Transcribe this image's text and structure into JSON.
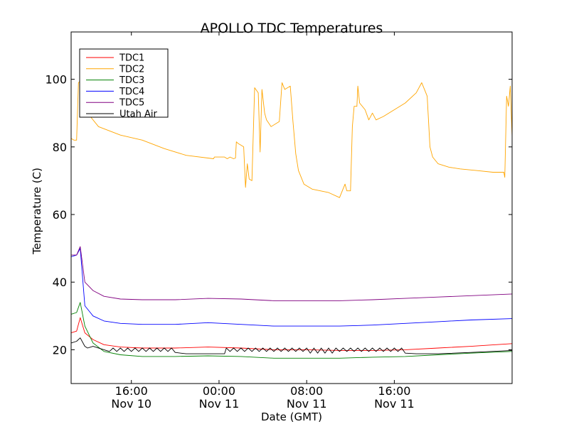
{
  "chart_data": {
    "type": "line",
    "title": "APOLLO TDC Temperatures",
    "xlabel": "Date (GMT)",
    "ylabel": "Temperature (C)",
    "xlim": [
      "Nov 10 10:30",
      "Nov 12 02:45"
    ],
    "ylim": [
      10,
      114
    ],
    "grid": false,
    "legend": "top-left",
    "x_ticks": [
      {
        "at": "Nov 10 16:00",
        "line1": "16:00",
        "line2": "Nov 10"
      },
      {
        "at": "Nov 11 00:00",
        "line1": "00:00",
        "line2": "Nov 11"
      },
      {
        "at": "Nov 11 08:00",
        "line1": "08:00",
        "line2": "Nov 11"
      },
      {
        "at": "Nov 11 16:00",
        "line1": "16:00",
        "line2": "Nov 11"
      }
    ],
    "y_ticks": [
      20,
      40,
      60,
      80,
      100
    ],
    "series": [
      {
        "name": "TDC1",
        "color": "#ff0000",
        "x": [
          "Nov 10 10:30",
          "Nov 10 11:00",
          "Nov 10 11:20",
          "Nov 10 11:45",
          "Nov 10 12:30",
          "Nov 10 13:30",
          "Nov 10 15:00",
          "Nov 10 17:00",
          "Nov 10 20:00",
          "Nov 10 23:00",
          "Nov 11 02:00",
          "Nov 11 05:00",
          "Nov 11 08:00",
          "Nov 11 11:00",
          "Nov 11 14:00",
          "Nov 11 17:00",
          "Nov 11 20:00",
          "Nov 11 23:00",
          "Nov 12 02:45"
        ],
        "values": [
          25.0,
          25.5,
          29.5,
          25.0,
          23.0,
          21.5,
          20.8,
          20.5,
          20.5,
          20.8,
          20.5,
          20.0,
          20.0,
          19.8,
          19.8,
          20.0,
          20.5,
          21.0,
          21.8
        ]
      },
      {
        "name": "TDC2",
        "color": "#ffa500",
        "x": [
          "Nov 10 10:30",
          "Nov 10 10:45",
          "Nov 10 11:00",
          "Nov 10 11:10",
          "Nov 10 11:30",
          "Nov 10 12:00",
          "Nov 10 13:00",
          "Nov 10 15:00",
          "Nov 10 17:00",
          "Nov 10 19:00",
          "Nov 10 21:00",
          "Nov 10 23:30",
          "Nov 10 23:35",
          "Nov 11 00:30",
          "Nov 11 00:45",
          "Nov 11 01:00",
          "Nov 11 01:20",
          "Nov 11 01:30",
          "Nov 11 01:35",
          "Nov 11 01:45",
          "Nov 11 02:00",
          "Nov 11 02:15",
          "Nov 11 02:25",
          "Nov 11 02:35",
          "Nov 11 02:45",
          "Nov 11 03:00",
          "Nov 11 03:15",
          "Nov 11 03:35",
          "Nov 11 03:45",
          "Nov 11 03:55",
          "Nov 11 04:10",
          "Nov 11 04:20",
          "Nov 11 04:45",
          "Nov 11 05:30",
          "Nov 11 05:45",
          "Nov 11 06:00",
          "Nov 11 06:30",
          "Nov 11 06:45",
          "Nov 11 07:00",
          "Nov 11 07:15",
          "Nov 11 07:45",
          "Nov 11 08:30",
          "Nov 11 10:00",
          "Nov 11 11:00",
          "Nov 11 11:30",
          "Nov 11 11:40",
          "Nov 11 12:00",
          "Nov 11 12:10",
          "Nov 11 12:20",
          "Nov 11 12:35",
          "Nov 11 12:40",
          "Nov 11 12:50",
          "Nov 11 13:20",
          "Nov 11 13:40",
          "Nov 11 14:00",
          "Nov 11 14:20",
          "Nov 11 15:00",
          "Nov 11 16:00",
          "Nov 11 17:00",
          "Nov 11 18:00",
          "Nov 11 18:30",
          "Nov 11 18:45",
          "Nov 11 19:00",
          "Nov 11 19:15",
          "Nov 11 19:30",
          "Nov 11 20:00",
          "Nov 11 21:00",
          "Nov 11 22:00",
          "Nov 11 23:30",
          "Nov 12 01:00",
          "Nov 12 02:00",
          "Nov 12 02:05",
          "Nov 12 02:15",
          "Nov 12 02:25",
          "Nov 12 02:35",
          "Nov 12 02:45"
        ],
        "values": [
          82.5,
          82.0,
          82.0,
          99.0,
          100.0,
          90.0,
          86.0,
          83.5,
          82.0,
          79.5,
          77.5,
          76.5,
          77.0,
          77.0,
          76.5,
          77.0,
          76.5,
          76.7,
          81.5,
          81.0,
          80.5,
          80.0,
          68.0,
          75.0,
          70.5,
          70.0,
          97.5,
          96.0,
          78.5,
          97.0,
          90.0,
          88.0,
          86.0,
          87.5,
          99.0,
          97.0,
          98.0,
          87.5,
          78.0,
          73.0,
          69.0,
          67.5,
          66.5,
          65.0,
          69.0,
          67.0,
          67.0,
          86.0,
          92.0,
          92.0,
          98.0,
          93.0,
          91.0,
          88.0,
          90.0,
          88.0,
          89.0,
          91.0,
          93.0,
          96.0,
          99.0,
          97.0,
          95.0,
          80.0,
          77.0,
          75.0,
          74.0,
          73.5,
          73.0,
          72.5,
          72.5,
          71.0,
          95.0,
          92.0,
          98.0,
          83.0
        ]
      },
      {
        "name": "TDC3",
        "color": "#008000",
        "x": [
          "Nov 10 10:30",
          "Nov 10 11:00",
          "Nov 10 11:20",
          "Nov 10 11:45",
          "Nov 10 12:30",
          "Nov 10 13:30",
          "Nov 10 15:00",
          "Nov 10 17:00",
          "Nov 10 20:00",
          "Nov 10 23:00",
          "Nov 11 02:00",
          "Nov 11 05:00",
          "Nov 11 08:00",
          "Nov 11 11:00",
          "Nov 11 14:00",
          "Nov 11 17:00",
          "Nov 11 20:00",
          "Nov 11 23:00",
          "Nov 12 02:45"
        ],
        "values": [
          30.5,
          31.0,
          34.0,
          27.0,
          22.0,
          19.5,
          18.5,
          18.0,
          18.0,
          18.2,
          18.0,
          17.5,
          17.5,
          17.5,
          17.8,
          18.0,
          18.5,
          19.0,
          19.5
        ]
      },
      {
        "name": "TDC4",
        "color": "#0000ff",
        "x": [
          "Nov 10 10:30",
          "Nov 10 11:00",
          "Nov 10 11:20",
          "Nov 10 11:45",
          "Nov 10 12:30",
          "Nov 10 13:30",
          "Nov 10 15:00",
          "Nov 10 17:00",
          "Nov 10 20:00",
          "Nov 10 23:00",
          "Nov 11 02:00",
          "Nov 11 05:00",
          "Nov 11 08:00",
          "Nov 11 11:00",
          "Nov 11 14:00",
          "Nov 11 17:00",
          "Nov 11 20:00",
          "Nov 11 23:00",
          "Nov 12 02:45"
        ],
        "values": [
          47.5,
          48.0,
          50.0,
          33.0,
          30.0,
          28.5,
          27.8,
          27.5,
          27.5,
          28.0,
          27.5,
          27.0,
          27.0,
          27.0,
          27.3,
          27.8,
          28.3,
          28.8,
          29.2
        ]
      },
      {
        "name": "TDC5",
        "color": "#800080",
        "x": [
          "Nov 10 10:30",
          "Nov 10 11:00",
          "Nov 10 11:20",
          "Nov 10 11:45",
          "Nov 10 12:30",
          "Nov 10 13:30",
          "Nov 10 15:00",
          "Nov 10 17:00",
          "Nov 10 20:00",
          "Nov 10 23:00",
          "Nov 11 02:00",
          "Nov 11 05:00",
          "Nov 11 08:00",
          "Nov 11 11:00",
          "Nov 11 14:00",
          "Nov 11 17:00",
          "Nov 11 20:00",
          "Nov 11 23:00",
          "Nov 12 02:45"
        ],
        "values": [
          48.0,
          48.0,
          50.5,
          40.0,
          37.5,
          35.8,
          35.0,
          34.8,
          34.8,
          35.2,
          35.0,
          34.5,
          34.5,
          34.5,
          34.8,
          35.2,
          35.6,
          36.0,
          36.5
        ]
      },
      {
        "name": "Utah Air",
        "color": "#000000",
        "x": [
          "Nov 10 10:30",
          "Nov 10 11:00",
          "Nov 10 11:20",
          "Nov 10 11:45",
          "Nov 10 12:00",
          "Nov 10 12:30",
          "Nov 10 13:30",
          "Nov 10 14:00",
          "Nov 10 14:20",
          "Nov 10 14:40",
          "Nov 10 15:00",
          "Nov 10 15:20",
          "Nov 10 15:40",
          "Nov 10 16:00",
          "Nov 10 16:20",
          "Nov 10 16:40",
          "Nov 10 17:00",
          "Nov 10 17:20",
          "Nov 10 17:40",
          "Nov 10 18:00",
          "Nov 10 18:20",
          "Nov 10 18:40",
          "Nov 10 19:00",
          "Nov 10 19:20",
          "Nov 10 19:40",
          "Nov 10 20:00",
          "Nov 10 21:00",
          "Nov 10 23:00",
          "Nov 11 00:30",
          "Nov 11 00:40",
          "Nov 11 01:00",
          "Nov 11 01:20",
          "Nov 11 01:40",
          "Nov 11 02:00",
          "Nov 11 02:20",
          "Nov 11 02:40",
          "Nov 11 03:00",
          "Nov 11 03:20",
          "Nov 11 03:40",
          "Nov 11 04:00",
          "Nov 11 04:20",
          "Nov 11 04:40",
          "Nov 11 05:00",
          "Nov 11 05:20",
          "Nov 11 05:40",
          "Nov 11 06:00",
          "Nov 11 06:20",
          "Nov 11 06:40",
          "Nov 11 07:00",
          "Nov 11 07:20",
          "Nov 11 07:40",
          "Nov 11 08:00",
          "Nov 11 08:20",
          "Nov 11 08:40",
          "Nov 11 09:00",
          "Nov 11 09:20",
          "Nov 11 09:40",
          "Nov 11 10:00",
          "Nov 11 10:20",
          "Nov 11 10:40",
          "Nov 11 11:00",
          "Nov 11 11:20",
          "Nov 11 11:40",
          "Nov 11 12:00",
          "Nov 11 12:20",
          "Nov 11 12:40",
          "Nov 11 13:00",
          "Nov 11 13:20",
          "Nov 11 13:40",
          "Nov 11 14:00",
          "Nov 11 14:20",
          "Nov 11 14:40",
          "Nov 11 15:00",
          "Nov 11 15:20",
          "Nov 11 15:40",
          "Nov 11 16:00",
          "Nov 11 16:20",
          "Nov 11 16:40",
          "Nov 11 17:00",
          "Nov 11 18:00",
          "Nov 11 20:00",
          "Nov 11 23:00",
          "Nov 12 02:45"
        ],
        "values": [
          22.0,
          22.5,
          23.5,
          21.0,
          20.5,
          21.0,
          20.0,
          19.5,
          20.5,
          19.5,
          20.5,
          19.5,
          20.5,
          19.5,
          20.5,
          19.5,
          20.5,
          19.5,
          20.5,
          19.5,
          20.5,
          19.5,
          20.5,
          19.5,
          20.5,
          19.2,
          18.8,
          18.8,
          18.8,
          20.5,
          19.5,
          20.5,
          19.5,
          20.5,
          19.5,
          20.5,
          19.5,
          20.5,
          19.5,
          20.5,
          19.5,
          20.5,
          19.5,
          20.5,
          19.5,
          20.5,
          19.5,
          20.5,
          19.5,
          20.5,
          19.5,
          20.5,
          19.0,
          20.5,
          19.0,
          20.5,
          19.0,
          20.5,
          19.0,
          20.5,
          19.5,
          20.5,
          19.5,
          20.5,
          19.5,
          20.5,
          19.5,
          20.5,
          19.5,
          20.5,
          19.5,
          20.5,
          19.5,
          20.5,
          19.5,
          20.5,
          19.5,
          20.5,
          19.0,
          18.8,
          18.8,
          19.2,
          19.8
        ]
      }
    ]
  }
}
